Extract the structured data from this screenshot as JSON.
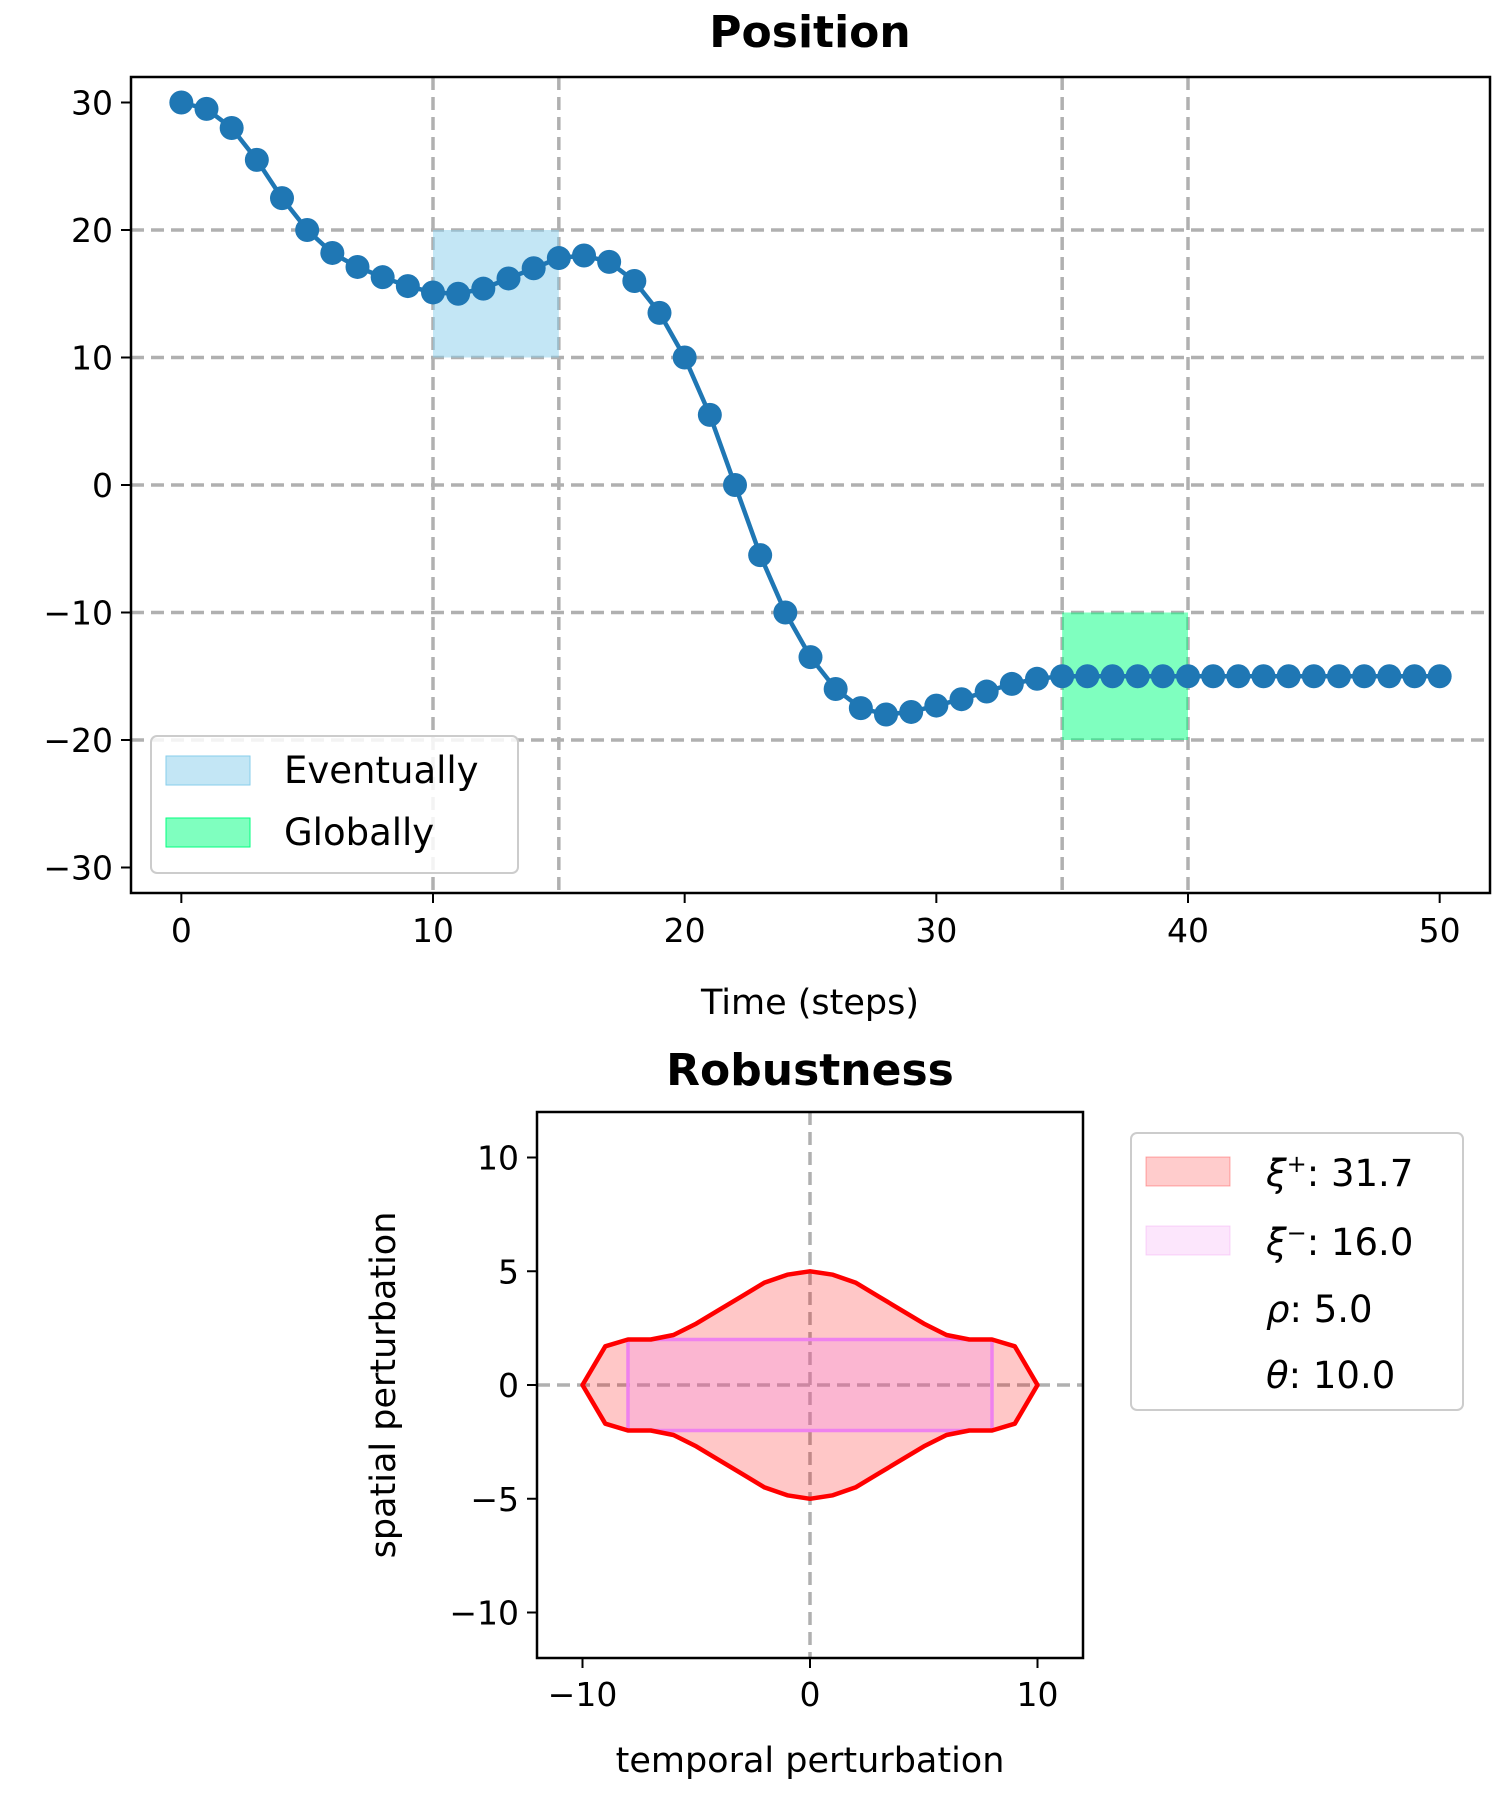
{
  "chart_data": [
    {
      "type": "line",
      "title": "Position",
      "xlabel": "Time (steps)",
      "ylabel": "",
      "xlim": [
        -2,
        52
      ],
      "ylim": [
        -32,
        32
      ],
      "xticks": [
        "0",
        "10",
        "20",
        "30",
        "40",
        "50"
      ],
      "yticks": [
        "30",
        "20",
        "10",
        "0",
        "−10",
        "−20",
        "−30"
      ],
      "grid": "dashed",
      "vlines": [
        10,
        15,
        35,
        40
      ],
      "series": [
        {
          "color": "#1f77b4",
          "x": [
            0,
            1,
            2,
            3,
            4,
            5,
            6,
            7,
            8,
            9,
            10,
            11,
            12,
            13,
            14,
            15,
            16,
            17,
            18,
            19,
            20,
            21,
            22,
            23,
            24,
            25,
            26,
            27,
            28,
            29,
            30,
            31,
            32,
            33,
            34,
            35,
            36,
            37,
            38,
            39,
            40,
            41,
            42,
            43,
            44,
            45,
            46,
            47,
            48,
            49,
            50
          ],
          "y": [
            30,
            29.5,
            28,
            25.5,
            22.5,
            20,
            18.2,
            17.1,
            16.3,
            15.6,
            15.1,
            15.0,
            15.4,
            16.2,
            17.0,
            17.8,
            18.0,
            17.5,
            16.0,
            13.5,
            10.0,
            5.5,
            0.0,
            -5.5,
            -10.0,
            -13.5,
            -16.0,
            -17.5,
            -18.0,
            -17.8,
            -17.3,
            -16.8,
            -16.2,
            -15.6,
            -15.2,
            -15.0,
            -15.0,
            -15.0,
            -15.0,
            -15.0,
            -15.0,
            -15.0,
            -15.0,
            -15.0,
            -15.0,
            -15.0,
            -15.0,
            -15.0,
            -15.0,
            -15.0,
            -15.0
          ]
        }
      ],
      "regions": [
        {
          "name": "Eventually",
          "x": [
            10,
            15
          ],
          "y": [
            10,
            20
          ],
          "color": "#87ceeb"
        },
        {
          "name": "Globally",
          "x": [
            35,
            40
          ],
          "y": [
            -20,
            -10
          ],
          "color": "#00ff7f"
        }
      ],
      "legend": {
        "placement": "lower-left",
        "entries": [
          "Eventually",
          "Globally"
        ]
      }
    },
    {
      "type": "area",
      "title": "Robustness",
      "xlabel": "temporal perturbation",
      "ylabel": "spatial perturbation",
      "xlim": [
        -12,
        12
      ],
      "ylim": [
        -12,
        12
      ],
      "xticks": [
        "−10",
        "0",
        "10"
      ],
      "yticks": [
        "10",
        "5",
        "0",
        "−5",
        "−10"
      ],
      "crosshair": [
        0,
        0
      ],
      "series": [
        {
          "name": "ξ⁺",
          "kind": "upper-envelope",
          "color": "#ff0000",
          "x": [
            -10,
            -9,
            -8,
            -7,
            -6,
            -5,
            -4,
            -3,
            -2,
            -1,
            0,
            1,
            2,
            3,
            4,
            5,
            6,
            7,
            8,
            9,
            10
          ],
          "y": [
            0,
            1.7,
            2.0,
            2.0,
            2.2,
            2.7,
            3.3,
            3.9,
            4.5,
            4.85,
            5.0,
            4.85,
            4.5,
            3.9,
            3.3,
            2.7,
            2.2,
            2.0,
            2.0,
            1.7,
            0
          ]
        },
        {
          "name": "ξ⁻",
          "kind": "rectangle",
          "color": "#ee82ee",
          "x": [
            -8,
            8
          ],
          "y": [
            -2,
            2
          ]
        }
      ],
      "legend": {
        "placement": "right",
        "entries": [
          {
            "symbol": "ξ",
            "sup": "+",
            "value": ": 31.7"
          },
          {
            "symbol": "ξ",
            "sup": "−",
            "value": ": 16.0"
          },
          {
            "symbol": "ρ",
            "sup": "",
            "value": ": 5.0"
          },
          {
            "symbol": "θ",
            "sup": "",
            "value": ": 10.0"
          }
        ]
      }
    }
  ]
}
